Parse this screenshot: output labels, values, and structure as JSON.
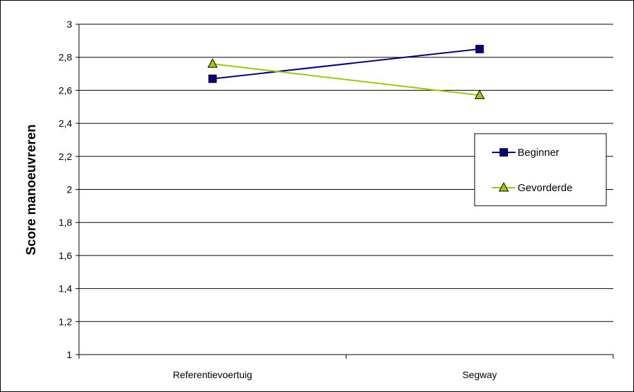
{
  "chart_data": {
    "type": "line",
    "ylabel": "Score manoeuvreren",
    "categories": [
      "Referentievoertuig",
      "Segway"
    ],
    "ylim": [
      1,
      3
    ],
    "yticks": [
      "1",
      "1,2",
      "1,4",
      "1,6",
      "1,8",
      "2",
      "2,2",
      "2,4",
      "2,6",
      "2,8",
      "3"
    ],
    "grid": "horizontal",
    "legend_position": "right",
    "series": [
      {
        "name": "Beginner",
        "values": [
          2.67,
          2.85
        ],
        "color": "#000080",
        "marker": "square",
        "marker_fill": "#000080"
      },
      {
        "name": "Gevorderde",
        "values": [
          2.76,
          2.57
        ],
        "color": "#99CC00",
        "marker": "triangle",
        "marker_fill": "#99CC00"
      }
    ]
  }
}
